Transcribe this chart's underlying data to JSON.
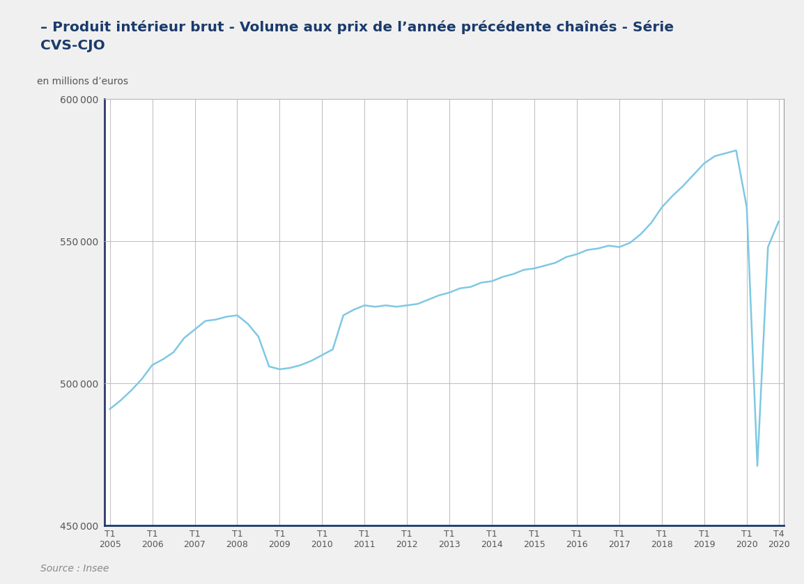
{
  "title_line1": "– Produit intérieur brut - Volume aux prix de l’année précédente chaînés - Série",
  "title_line2": "CVS-CJO",
  "ylabel": "en millions d’euros",
  "source": "Source : Insee",
  "background_color": "#f0f0f0",
  "plot_background_color": "#ffffff",
  "line_color": "#7ec8e3",
  "title_color": "#1a3a6b",
  "tick_label_color": "#555555",
  "grid_color": "#bbbbbb",
  "spine_color": "#999999",
  "left_spine_color": "#2b3a6b",
  "bottom_spine_color": "#1a3a6b",
  "ylim": [
    450000,
    600000
  ],
  "yticks": [
    450000,
    500000,
    550000,
    600000
  ],
  "quarters": [
    "T1\n2005",
    "T1\n2006",
    "T1\n2007",
    "T1\n2008",
    "T1\n2009",
    "T1\n2010",
    "T1\n2011",
    "T1\n2012",
    "T1\n2013",
    "T1\n2014",
    "T1\n2015",
    "T1\n2016",
    "T1\n2017",
    "T1\n2018",
    "T1\n2019",
    "T1\n2020",
    "T4\n2020"
  ],
  "x_positions": [
    0,
    4,
    8,
    12,
    16,
    20,
    24,
    28,
    32,
    36,
    40,
    44,
    48,
    52,
    56,
    60,
    63
  ],
  "data": {
    "x": [
      0,
      1,
      2,
      3,
      4,
      5,
      6,
      7,
      8,
      9,
      10,
      11,
      12,
      13,
      14,
      15,
      16,
      17,
      18,
      19,
      20,
      21,
      22,
      23,
      24,
      25,
      26,
      27,
      28,
      29,
      30,
      31,
      32,
      33,
      34,
      35,
      36,
      37,
      38,
      39,
      40,
      41,
      42,
      43,
      44,
      45,
      46,
      47,
      48,
      49,
      50,
      51,
      52,
      53,
      54,
      55,
      56,
      57,
      58,
      59,
      60,
      61,
      62,
      63
    ],
    "y": [
      491000,
      494000,
      497500,
      501500,
      506500,
      508500,
      511000,
      516000,
      519000,
      522000,
      522500,
      523500,
      524000,
      521000,
      516500,
      506000,
      505000,
      505500,
      506500,
      508000,
      510000,
      512000,
      524000,
      526000,
      527500,
      527000,
      527500,
      527000,
      527500,
      528000,
      529500,
      531000,
      532000,
      533500,
      534000,
      535500,
      536000,
      537500,
      538500,
      540000,
      540500,
      541500,
      542500,
      544500,
      545500,
      547000,
      547500,
      548500,
      548000,
      549500,
      552500,
      556500,
      562000,
      566000,
      569500,
      573500,
      577500,
      580000,
      581000,
      582000,
      562000,
      471000,
      548000,
      557000
    ]
  }
}
